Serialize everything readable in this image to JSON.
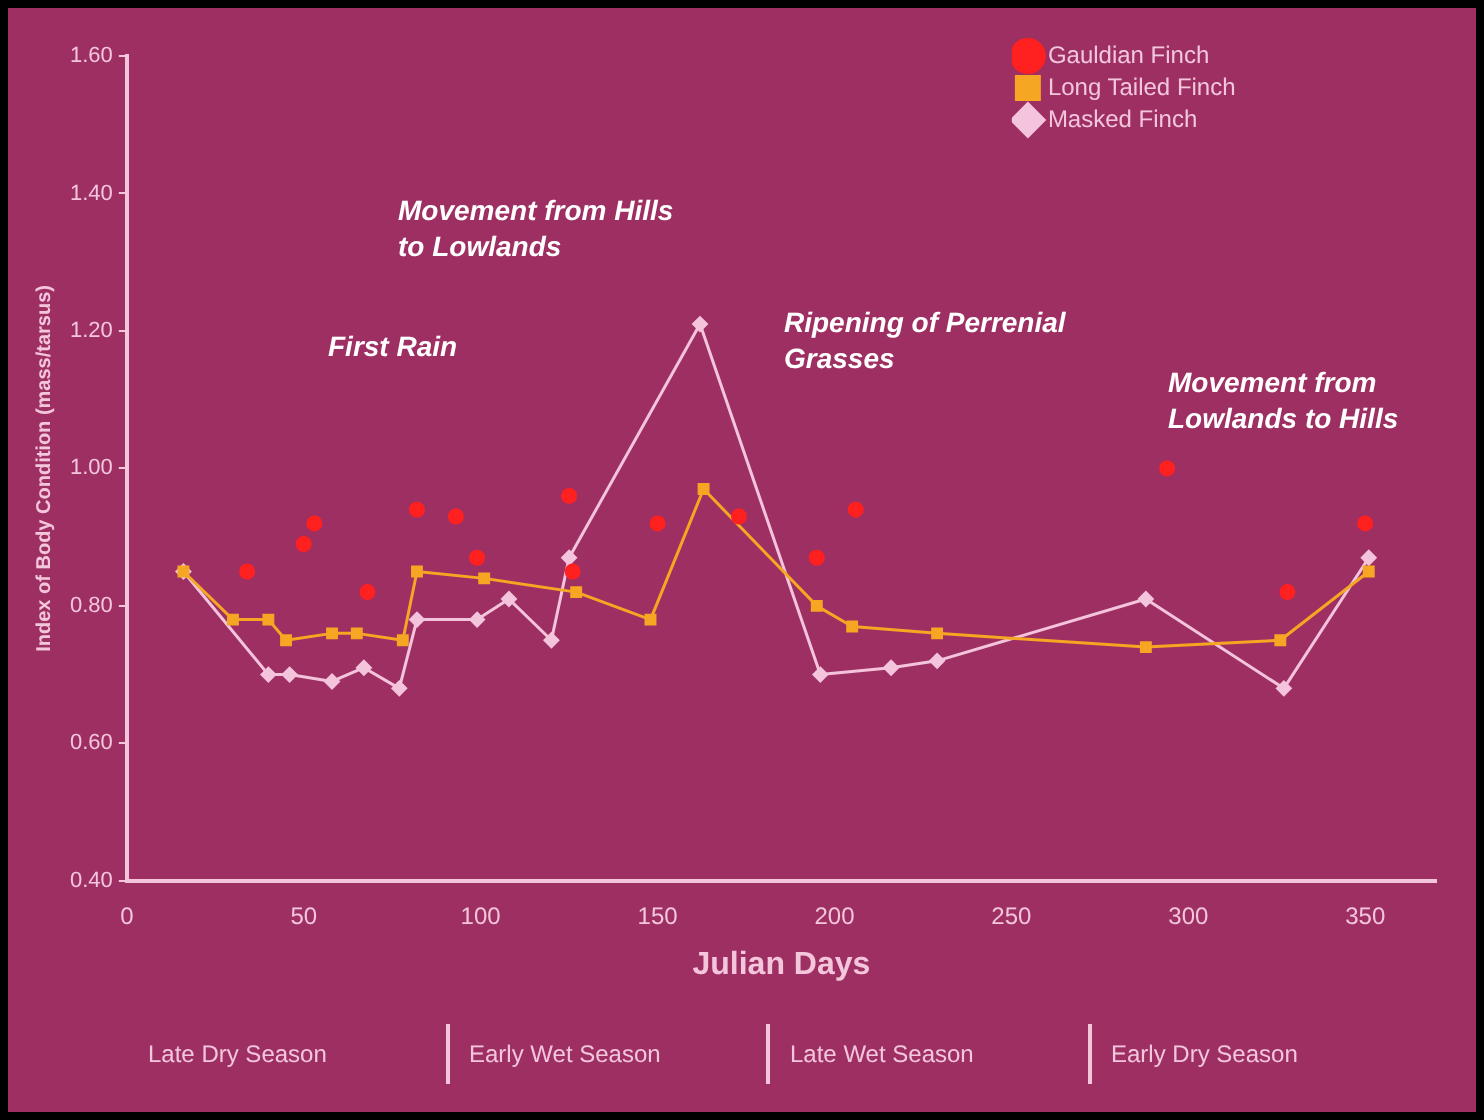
{
  "chart_data": {
    "type": "line",
    "xlabel": "Julian Days",
    "ylabel": "Index of Body Condition (mass/tarsus)",
    "xlim": [
      0,
      370
    ],
    "xticks": [
      0,
      50,
      100,
      150,
      200,
      250,
      300,
      350
    ],
    "ylim": [
      0.4,
      1.6
    ],
    "yticks": [
      {
        "value": 0.4,
        "label": "0.40"
      },
      {
        "value": 0.6,
        "label": "0.60"
      },
      {
        "value": 0.8,
        "label": "0.80"
      },
      {
        "value": 1.0,
        "label": "1.00"
      },
      {
        "value": 1.2,
        "label": "1.20"
      },
      {
        "value": 1.4,
        "label": "1.40"
      },
      {
        "value": 1.6,
        "label": "1.60"
      }
    ],
    "grid": false,
    "legend": "top right",
    "series": [
      {
        "name": "Gauldian Finch",
        "type": "scatter",
        "marker": "circle",
        "color": "#ff2020",
        "x": [
          34,
          50,
          53,
          68,
          82,
          93,
          99,
          125,
          126,
          150,
          173,
          195,
          206,
          294,
          328,
          350
        ],
        "values": [
          0.85,
          0.89,
          0.92,
          0.82,
          0.94,
          0.93,
          0.87,
          0.96,
          0.85,
          0.92,
          0.93,
          0.87,
          0.94,
          1.0,
          0.82,
          0.92
        ]
      },
      {
        "name": "Long Tailed Finch",
        "type": "line",
        "marker": "square",
        "color": "#f5a623",
        "x": [
          16,
          30,
          40,
          45,
          58,
          65,
          78,
          82,
          101,
          127,
          148,
          163,
          195,
          205,
          229,
          288,
          326,
          351
        ],
        "values": [
          0.85,
          0.78,
          0.78,
          0.75,
          0.76,
          0.76,
          0.75,
          0.85,
          0.84,
          0.82,
          0.78,
          0.97,
          0.8,
          0.77,
          0.76,
          0.74,
          0.75,
          0.85
        ]
      },
      {
        "name": "Masked Finch",
        "type": "line",
        "marker": "diamond",
        "color": "#f4c4dc",
        "x": [
          16,
          40,
          46,
          58,
          67,
          77,
          82,
          99,
          108,
          120,
          125,
          162,
          196,
          216,
          229,
          288,
          327,
          351
        ],
        "values": [
          0.85,
          0.7,
          0.7,
          0.69,
          0.71,
          0.68,
          0.78,
          0.78,
          0.81,
          0.75,
          0.87,
          1.21,
          0.7,
          0.71,
          0.72,
          0.81,
          0.68,
          0.87
        ]
      }
    ],
    "annotations": [
      "First Rain",
      "Movement from Hills\nto Lowlands",
      "Ripening of Perrenial\nGrasses",
      "Movement from\nLowlands to Hills",
      "Late Dry Season",
      "Early Wet Season",
      "Late Wet Season",
      "Early Dry Season"
    ]
  }
}
